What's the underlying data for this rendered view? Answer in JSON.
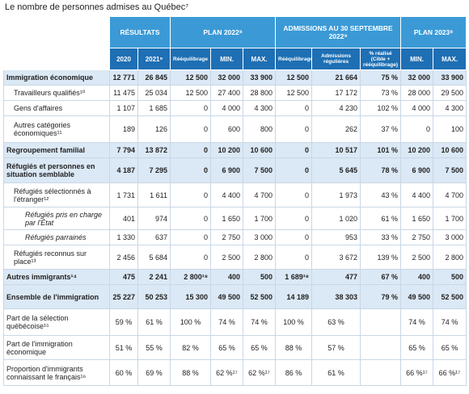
{
  "title": "Le nombre de personnes admises au Québec⁷",
  "table": {
    "group_headers": [
      "RÉSULTATS",
      "PLAN 2022⁸",
      "ADMISSIONS AU 30 SEPTEMBRE 2022⁹",
      "PLAN 2023⁸"
    ],
    "columns": [
      "2020",
      "2021⁹",
      "Rééquilibrage",
      "MIN.",
      "MAX.",
      "Rééquilibrage",
      "Admissions régulières",
      "% réalisé (Cible + rééquilibrage)",
      "MIN.",
      "MAX."
    ],
    "rows": [
      {
        "label": "Immigration économique",
        "style": "bold",
        "cells": [
          "12 771",
          "26 845",
          "12 500",
          "32 000",
          "33 900",
          "12 500",
          "21 664",
          "75 %",
          "32 000",
          "33 900"
        ]
      },
      {
        "label": "Travailleurs qualifiés¹⁰",
        "style": "sub",
        "cells": [
          "11 475",
          "25 034",
          "12 500",
          "27 400",
          "28 800",
          "12 500",
          "17 172",
          "73 %",
          "28 000",
          "29 500"
        ]
      },
      {
        "label": "Gens d'affaires",
        "style": "sub",
        "cells": [
          "1 107",
          "1 685",
          "0",
          "4 000",
          "4 300",
          "0",
          "4 230",
          "102 %",
          "4 000",
          "4 300"
        ]
      },
      {
        "label": "Autres catégories économiques¹¹",
        "style": "sub",
        "cells": [
          "189",
          "126",
          "0",
          "600",
          "800",
          "0",
          "262",
          "37 %",
          "0",
          "100"
        ]
      },
      {
        "label": "Regroupement familial",
        "style": "bold",
        "cells": [
          "7 794",
          "13 872",
          "0",
          "10 200",
          "10 600",
          "0",
          "10 517",
          "101 %",
          "10 200",
          "10 600"
        ]
      },
      {
        "label": "Réfugiés et personnes en situation semblable",
        "style": "bold",
        "cells": [
          "4 187",
          "7 295",
          "0",
          "6 900",
          "7 500",
          "0",
          "5 645",
          "78 %",
          "6 900",
          "7 500"
        ]
      },
      {
        "label": "Réfugiés sélectionnés à l'étranger¹²",
        "style": "sub",
        "cells": [
          "1 731",
          "1 611",
          "0",
          "4 400",
          "4 700",
          "0",
          "1 973",
          "43 %",
          "4 400",
          "4 700"
        ]
      },
      {
        "label": "Réfugiés pris en charge par l'État",
        "style": "italic",
        "cells": [
          "401",
          "974",
          "0",
          "1 650",
          "1 700",
          "0",
          "1 020",
          "61 %",
          "1 650",
          "1 700"
        ]
      },
      {
        "label": "Réfugiés parrainés",
        "style": "italic",
        "cells": [
          "1 330",
          "637",
          "0",
          "2 750",
          "3 000",
          "0",
          "953",
          "33 %",
          "2 750",
          "3 000"
        ]
      },
      {
        "label": "Réfugiés reconnus sur place¹³",
        "style": "sub",
        "cells": [
          "2 456",
          "5 684",
          "0",
          "2 500",
          "2 800",
          "0",
          "3 672",
          "139 %",
          "2 500",
          "2 800"
        ]
      },
      {
        "label": "Autres immigrants¹⁴",
        "style": "bold",
        "cells": [
          "475",
          "2 241",
          "2 800¹⁸",
          "400",
          "500",
          "1 689¹⁸",
          "477",
          "67 %",
          "400",
          "500"
        ]
      },
      {
        "label": "Ensemble de l'immigration",
        "style": "bold",
        "cells": [
          "25 227",
          "50 253",
          "15 300",
          "49 500",
          "52 500",
          "14 189",
          "38 303",
          "79 %",
          "49 500",
          "52 500"
        ]
      },
      {
        "label": "Part de la sélection québécoise¹⁵",
        "style": "pct",
        "cells": [
          "59 %",
          "61 %",
          "100 %",
          "74 %",
          "74 %",
          "100 %",
          "63 %",
          null,
          "74 %",
          "74 %"
        ]
      },
      {
        "label": "Part de l'immigration économique",
        "style": "pct",
        "cells": [
          "51 %",
          "55 %",
          "82 %",
          "65 %",
          "65 %",
          "88 %",
          "57 %",
          null,
          "65 %",
          "65 %"
        ]
      },
      {
        "label": "Proportion d'immigrants connaissant le français¹⁶",
        "style": "pct",
        "cells": [
          "60 %",
          "69 %",
          "88 %",
          "62 %¹⁷",
          "62 %¹⁷",
          "86 %",
          "61 %",
          null,
          "66 %¹⁷",
          "66 %¹⁷"
        ]
      }
    ]
  }
}
